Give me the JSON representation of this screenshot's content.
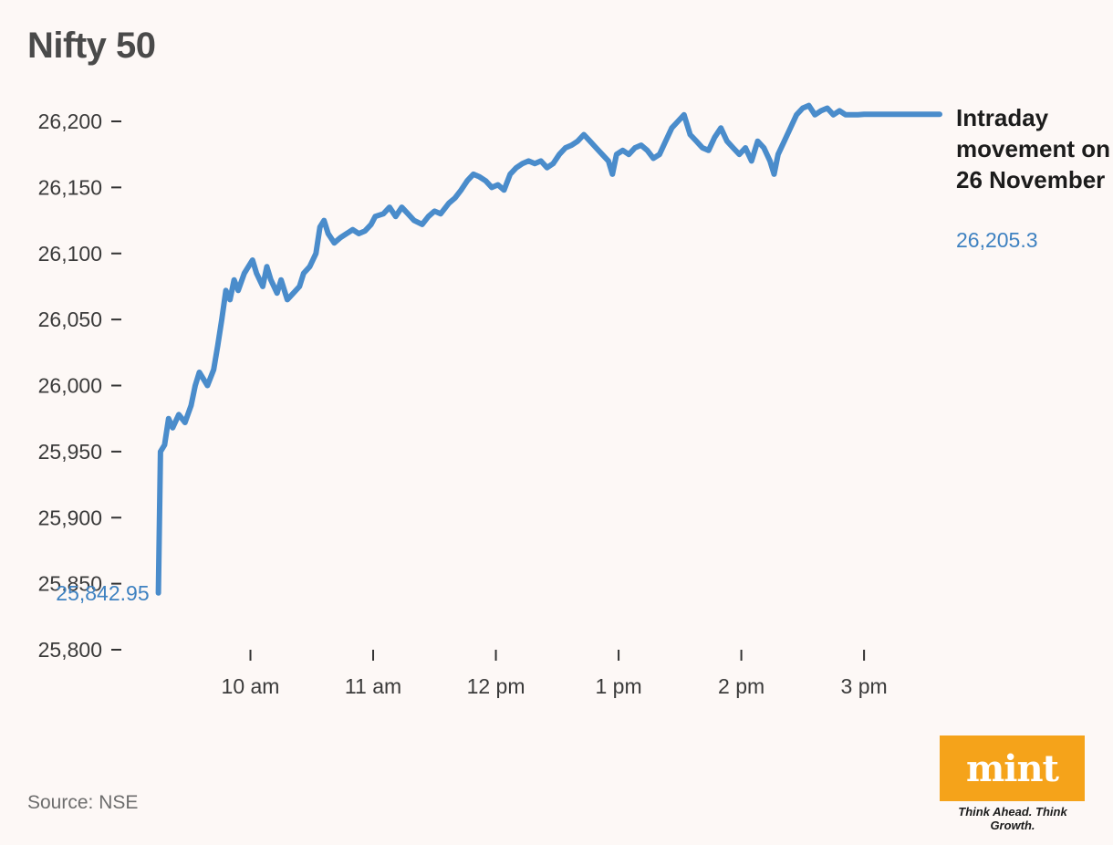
{
  "chart_data": {
    "type": "line",
    "title": "Nifty 50",
    "annotation_title": "Intraday movement on 26 November",
    "annotation_value": "26,205.3",
    "start_label": "25,842.95",
    "source": "Source: NSE",
    "ylim": [
      25800,
      26200
    ],
    "yticks": [
      {
        "value": 26200,
        "label": "26,200"
      },
      {
        "value": 26150,
        "label": "26,150"
      },
      {
        "value": 26100,
        "label": "26,100"
      },
      {
        "value": 26050,
        "label": "26,050"
      },
      {
        "value": 26000,
        "label": "26,000"
      },
      {
        "value": 25950,
        "label": "25,950"
      },
      {
        "value": 25900,
        "label": "25,900"
      },
      {
        "value": 25850,
        "label": "25,850"
      },
      {
        "value": 25800,
        "label": "25,800"
      }
    ],
    "xlim": [
      "09:00",
      "15:45"
    ],
    "xticks": [
      {
        "value": "10:00",
        "label": "10 am"
      },
      {
        "value": "11:00",
        "label": "11 am"
      },
      {
        "value": "12:00",
        "label": "12 pm"
      },
      {
        "value": "13:00",
        "label": "1 pm"
      },
      {
        "value": "14:00",
        "label": "2 pm"
      },
      {
        "value": "15:00",
        "label": "3 pm"
      }
    ],
    "grid": false,
    "line_color": "#4a8ccb",
    "series": [
      {
        "points": [
          [
            "09:15",
            25842.95
          ],
          [
            "09:16",
            25950
          ],
          [
            "09:18",
            25955
          ],
          [
            "09:20",
            25975
          ],
          [
            "09:22",
            25968
          ],
          [
            "09:25",
            25978
          ],
          [
            "09:28",
            25972
          ],
          [
            "09:31",
            25985
          ],
          [
            "09:33",
            26000
          ],
          [
            "09:35",
            26010
          ],
          [
            "09:37",
            26005
          ],
          [
            "09:39",
            26000
          ],
          [
            "09:42",
            26012
          ],
          [
            "09:44",
            26030
          ],
          [
            "09:46",
            26050
          ],
          [
            "09:48",
            26072
          ],
          [
            "09:50",
            26065
          ],
          [
            "09:52",
            26080
          ],
          [
            "09:54",
            26072
          ],
          [
            "09:57",
            26085
          ],
          [
            "09:59",
            26090
          ],
          [
            "10:01",
            26095
          ],
          [
            "10:03",
            26085
          ],
          [
            "10:06",
            26075
          ],
          [
            "10:08",
            26090
          ],
          [
            "10:10",
            26080
          ],
          [
            "10:13",
            26070
          ],
          [
            "10:15",
            26080
          ],
          [
            "10:18",
            26065
          ],
          [
            "10:21",
            26070
          ],
          [
            "10:24",
            26075
          ],
          [
            "10:26",
            26085
          ],
          [
            "10:29",
            26090
          ],
          [
            "10:32",
            26100
          ],
          [
            "10:34",
            26120
          ],
          [
            "10:36",
            26125
          ],
          [
            "10:38",
            26115
          ],
          [
            "10:41",
            26108
          ],
          [
            "10:44",
            26112
          ],
          [
            "10:47",
            26115
          ],
          [
            "10:50",
            26118
          ],
          [
            "10:53",
            26115
          ],
          [
            "10:56",
            26117
          ],
          [
            "10:59",
            26122
          ],
          [
            "11:01",
            26128
          ],
          [
            "11:05",
            26130
          ],
          [
            "11:08",
            26135
          ],
          [
            "11:11",
            26128
          ],
          [
            "11:14",
            26135
          ],
          [
            "11:17",
            26130
          ],
          [
            "11:20",
            26125
          ],
          [
            "11:24",
            26122
          ],
          [
            "11:27",
            26128
          ],
          [
            "11:30",
            26132
          ],
          [
            "11:33",
            26130
          ],
          [
            "11:37",
            26138
          ],
          [
            "11:40",
            26142
          ],
          [
            "11:43",
            26148
          ],
          [
            "11:46",
            26155
          ],
          [
            "11:49",
            26160
          ],
          [
            "11:52",
            26158
          ],
          [
            "11:55",
            26155
          ],
          [
            "11:58",
            26150
          ],
          [
            "12:01",
            26152
          ],
          [
            "12:04",
            26148
          ],
          [
            "12:07",
            26160
          ],
          [
            "12:10",
            26165
          ],
          [
            "12:13",
            26168
          ],
          [
            "12:16",
            26170
          ],
          [
            "12:19",
            26168
          ],
          [
            "12:22",
            26170
          ],
          [
            "12:25",
            26165
          ],
          [
            "12:28",
            26168
          ],
          [
            "12:31",
            26175
          ],
          [
            "12:34",
            26180
          ],
          [
            "12:37",
            26182
          ],
          [
            "12:40",
            26185
          ],
          [
            "12:43",
            26190
          ],
          [
            "12:46",
            26185
          ],
          [
            "12:49",
            26180
          ],
          [
            "12:52",
            26175
          ],
          [
            "12:55",
            26170
          ],
          [
            "12:57",
            26160
          ],
          [
            "12:59",
            26175
          ],
          [
            "13:02",
            26178
          ],
          [
            "13:05",
            26175
          ],
          [
            "13:08",
            26180
          ],
          [
            "13:11",
            26182
          ],
          [
            "13:14",
            26178
          ],
          [
            "13:17",
            26172
          ],
          [
            "13:20",
            26175
          ],
          [
            "13:23",
            26185
          ],
          [
            "13:26",
            26195
          ],
          [
            "13:29",
            26200
          ],
          [
            "13:32",
            26205
          ],
          [
            "13:35",
            26190
          ],
          [
            "13:38",
            26185
          ],
          [
            "13:41",
            26180
          ],
          [
            "13:44",
            26178
          ],
          [
            "13:47",
            26188
          ],
          [
            "13:50",
            26195
          ],
          [
            "13:53",
            26185
          ],
          [
            "13:56",
            26180
          ],
          [
            "13:59",
            26175
          ],
          [
            "14:02",
            26180
          ],
          [
            "14:05",
            26170
          ],
          [
            "14:08",
            26185
          ],
          [
            "14:11",
            26180
          ],
          [
            "14:14",
            26170
          ],
          [
            "14:16",
            26160
          ],
          [
            "14:18",
            26175
          ],
          [
            "14:21",
            26185
          ],
          [
            "14:24",
            26195
          ],
          [
            "14:27",
            26205
          ],
          [
            "14:30",
            26210
          ],
          [
            "14:33",
            26212
          ],
          [
            "14:36",
            26205
          ],
          [
            "14:39",
            26208
          ],
          [
            "14:42",
            26210
          ],
          [
            "14:45",
            26205
          ],
          [
            "14:48",
            26208
          ],
          [
            "14:51",
            26205
          ],
          [
            "14:54",
            26205
          ],
          [
            "14:57",
            26205
          ],
          [
            "15:00",
            26205.3
          ]
        ]
      }
    ]
  },
  "branding": {
    "logo_text": "mint",
    "tagline": "Think Ahead. Think Growth."
  }
}
